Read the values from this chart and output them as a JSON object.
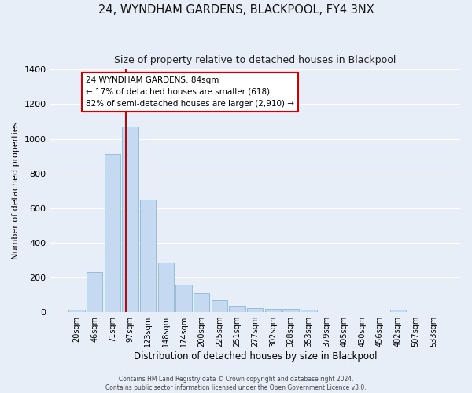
{
  "title": "24, WYNDHAM GARDENS, BLACKPOOL, FY4 3NX",
  "subtitle": "Size of property relative to detached houses in Blackpool",
  "xlabel": "Distribution of detached houses by size in Blackpool",
  "ylabel": "Number of detached properties",
  "bar_labels": [
    "20sqm",
    "46sqm",
    "71sqm",
    "97sqm",
    "123sqm",
    "148sqm",
    "174sqm",
    "200sqm",
    "225sqm",
    "251sqm",
    "277sqm",
    "302sqm",
    "328sqm",
    "353sqm",
    "379sqm",
    "405sqm",
    "430sqm",
    "456sqm",
    "482sqm",
    "507sqm",
    "533sqm"
  ],
  "bar_values": [
    15,
    230,
    910,
    1070,
    650,
    285,
    158,
    108,
    70,
    35,
    25,
    20,
    18,
    12,
    0,
    0,
    0,
    0,
    12,
    0,
    0
  ],
  "bar_color": "#c5d9f0",
  "bar_edge_color": "#7bafd4",
  "bg_color": "#e8eef7",
  "grid_color": "#ffffff",
  "vline_color": "#cc0000",
  "annotation_text": "24 WYNDHAM GARDENS: 84sqm\n← 17% of detached houses are smaller (618)\n82% of semi-detached houses are larger (2,910) →",
  "annotation_box_color": "#ffffff",
  "annotation_box_edgecolor": "#cc0000",
  "ylim": [
    0,
    1400
  ],
  "yticks": [
    0,
    200,
    400,
    600,
    800,
    1000,
    1200,
    1400
  ],
  "footer1": "Contains HM Land Registry data © Crown copyright and database right 2024.",
  "footer2": "Contains public sector information licensed under the Open Government Licence v3.0."
}
